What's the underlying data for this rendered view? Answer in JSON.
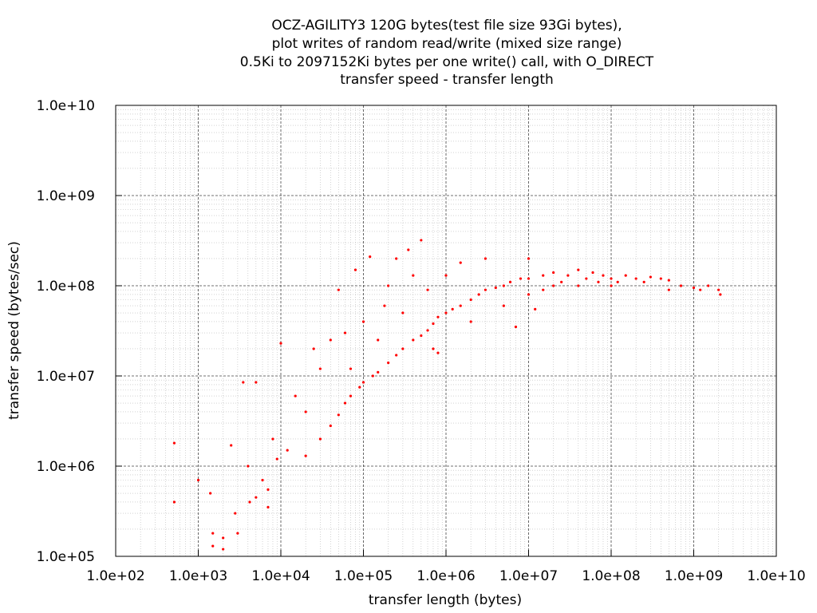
{
  "chart_data": {
    "type": "scatter",
    "title_lines": [
      "OCZ-AGILITY3 120G bytes(test file size 93Gi bytes),",
      "plot writes of random read/write (mixed size range)",
      "0.5Ki to 2097152Ki bytes per one write() call, with O_DIRECT",
      "transfer speed - transfer length"
    ],
    "xlabel": "transfer length (bytes)",
    "ylabel": "transfer speed (bytes/sec)",
    "x_scale": "log",
    "y_scale": "log",
    "xlim": [
      100,
      10000000000
    ],
    "ylim": [
      100000,
      10000000000
    ],
    "x_ticks": [
      {
        "value": 100,
        "label": "1.0e+02"
      },
      {
        "value": 1000,
        "label": "1.0e+03"
      },
      {
        "value": 10000,
        "label": "1.0e+04"
      },
      {
        "value": 100000,
        "label": "1.0e+05"
      },
      {
        "value": 1000000,
        "label": "1.0e+06"
      },
      {
        "value": 10000000,
        "label": "1.0e+07"
      },
      {
        "value": 100000000,
        "label": "1.0e+08"
      },
      {
        "value": 1000000000,
        "label": "1.0e+09"
      },
      {
        "value": 10000000000,
        "label": "1.0e+10"
      }
    ],
    "y_ticks": [
      {
        "value": 100000,
        "label": "1.0e+05"
      },
      {
        "value": 1000000,
        "label": "1.0e+06"
      },
      {
        "value": 10000000,
        "label": "1.0e+07"
      },
      {
        "value": 100000000,
        "label": "1.0e+08"
      },
      {
        "value": 1000000000,
        "label": "1.0e+09"
      },
      {
        "value": 10000000000,
        "label": "1.0e+10"
      }
    ],
    "grid": true,
    "series": [
      {
        "color": "#ff0000",
        "points": [
          [
            512,
            1800000
          ],
          [
            512,
            400000
          ],
          [
            1000,
            700000
          ],
          [
            1400,
            500000
          ],
          [
            1500,
            180000
          ],
          [
            1500,
            130000
          ],
          [
            2000,
            160000
          ],
          [
            2000,
            120000
          ],
          [
            2500,
            1700000
          ],
          [
            2800,
            300000
          ],
          [
            3000,
            180000
          ],
          [
            3500,
            8500000
          ],
          [
            4000,
            1000000
          ],
          [
            4200,
            400000
          ],
          [
            5000,
            450000
          ],
          [
            5000,
            8500000
          ],
          [
            6000,
            700000
          ],
          [
            7000,
            350000
          ],
          [
            7000,
            550000
          ],
          [
            8000,
            2000000
          ],
          [
            9000,
            1200000
          ],
          [
            10000,
            23000000
          ],
          [
            12000,
            1500000
          ],
          [
            15000,
            6000000
          ],
          [
            20000,
            1300000
          ],
          [
            20000,
            4000000
          ],
          [
            25000,
            20000000
          ],
          [
            30000,
            2000000
          ],
          [
            30000,
            12000000
          ],
          [
            40000,
            2800000
          ],
          [
            40000,
            25000000
          ],
          [
            50000,
            3700000
          ],
          [
            50000,
            90000000
          ],
          [
            60000,
            5000000
          ],
          [
            60000,
            30000000
          ],
          [
            70000,
            6000000
          ],
          [
            70000,
            12000000
          ],
          [
            80000,
            150000000
          ],
          [
            90000,
            7500000
          ],
          [
            100000,
            8500000
          ],
          [
            100000,
            40000000
          ],
          [
            120000,
            210000000
          ],
          [
            130000,
            10000000
          ],
          [
            150000,
            11000000
          ],
          [
            150000,
            25000000
          ],
          [
            180000,
            60000000
          ],
          [
            200000,
            14000000
          ],
          [
            200000,
            100000000
          ],
          [
            250000,
            17000000
          ],
          [
            250000,
            200000000
          ],
          [
            300000,
            20000000
          ],
          [
            300000,
            50000000
          ],
          [
            350000,
            250000000
          ],
          [
            400000,
            25000000
          ],
          [
            400000,
            130000000
          ],
          [
            500000,
            28000000
          ],
          [
            500000,
            320000000
          ],
          [
            600000,
            32000000
          ],
          [
            600000,
            90000000
          ],
          [
            700000,
            38000000
          ],
          [
            700000,
            20000000
          ],
          [
            800000,
            18000000
          ],
          [
            800000,
            45000000
          ],
          [
            1000000,
            50000000
          ],
          [
            1000000,
            130000000
          ],
          [
            1200000,
            55000000
          ],
          [
            1500000,
            60000000
          ],
          [
            1500000,
            180000000
          ],
          [
            2000000,
            70000000
          ],
          [
            2000000,
            40000000
          ],
          [
            2500000,
            80000000
          ],
          [
            3000000,
            90000000
          ],
          [
            3000000,
            200000000
          ],
          [
            4000000,
            95000000
          ],
          [
            5000000,
            100000000
          ],
          [
            5000000,
            60000000
          ],
          [
            6000000,
            110000000
          ],
          [
            7000000,
            35000000
          ],
          [
            8000000,
            120000000
          ],
          [
            10000000,
            120000000
          ],
          [
            10000000,
            80000000
          ],
          [
            10000000,
            200000000
          ],
          [
            12000000,
            55000000
          ],
          [
            15000000,
            130000000
          ],
          [
            15000000,
            90000000
          ],
          [
            20000000,
            140000000
          ],
          [
            20000000,
            100000000
          ],
          [
            25000000,
            110000000
          ],
          [
            30000000,
            130000000
          ],
          [
            40000000,
            150000000
          ],
          [
            40000000,
            100000000
          ],
          [
            50000000,
            120000000
          ],
          [
            60000000,
            140000000
          ],
          [
            70000000,
            110000000
          ],
          [
            80000000,
            130000000
          ],
          [
            100000000,
            120000000
          ],
          [
            100000000,
            100000000
          ],
          [
            120000000,
            110000000
          ],
          [
            150000000,
            130000000
          ],
          [
            200000000,
            120000000
          ],
          [
            250000000,
            110000000
          ],
          [
            300000000,
            125000000
          ],
          [
            400000000,
            120000000
          ],
          [
            500000000,
            115000000
          ],
          [
            500000000,
            90000000
          ],
          [
            700000000,
            100000000
          ],
          [
            1000000000,
            95000000
          ],
          [
            1200000000,
            90000000
          ],
          [
            1500000000,
            100000000
          ],
          [
            2000000000,
            90000000
          ],
          [
            2100000000,
            80000000
          ]
        ]
      }
    ]
  }
}
